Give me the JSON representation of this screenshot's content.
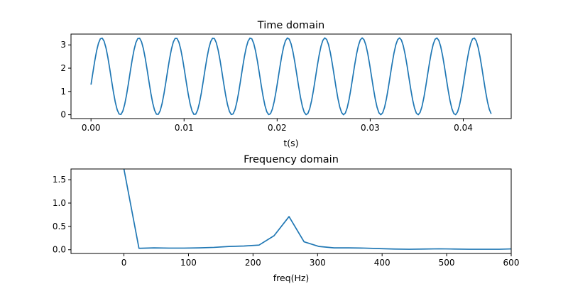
{
  "chart_data": [
    {
      "type": "line",
      "title": "Time domain",
      "xlabel": "t(s)",
      "ylabel": "",
      "xlim": [
        -0.00215,
        0.04515
      ],
      "ylim": [
        -0.165,
        3.465
      ],
      "xticks": [
        0.0,
        0.01,
        0.02,
        0.03,
        0.04
      ],
      "xtick_labels": [
        "0.00",
        "0.01",
        "0.02",
        "0.03",
        "0.04"
      ],
      "yticks": [
        0,
        1,
        2,
        3
      ],
      "ytick_labels": [
        "0",
        "1",
        "2",
        "3"
      ],
      "grid": false,
      "color": "#1f77b4",
      "signal": {
        "dc_offset": 1.65,
        "amplitude": 1.65,
        "frequency_hz": 250,
        "t_start": 0.0,
        "t_end": 0.043,
        "samples": 215
      }
    },
    {
      "type": "line",
      "title": "Frequency domain",
      "xlabel": "freq(Hz)",
      "ylabel": "",
      "xlim": [
        -82,
        600
      ],
      "ylim": [
        -0.08,
        1.73
      ],
      "xticks": [
        0,
        100,
        200,
        300,
        400,
        500,
        600
      ],
      "xtick_labels": [
        "0",
        "100",
        "200",
        "300",
        "400",
        "500",
        "600"
      ],
      "yticks": [
        0.0,
        0.5,
        1.0,
        1.5
      ],
      "ytick_labels": [
        "0.0",
        "0.5",
        "1.0",
        "1.5"
      ],
      "grid": false,
      "color": "#1f77b4",
      "x": [
        0,
        23.3,
        46.5,
        69.8,
        93,
        116.3,
        139.5,
        162.8,
        186,
        209.3,
        232.6,
        255.8,
        279.1,
        302.3,
        325.6,
        348.8,
        372.1,
        395.3,
        418.6,
        441.9,
        465.1,
        488.4,
        511.6,
        534.9,
        558.1,
        581.4,
        604.7
      ],
      "values": [
        1.73,
        0.03,
        0.04,
        0.035,
        0.035,
        0.04,
        0.05,
        0.07,
        0.08,
        0.1,
        0.3,
        0.71,
        0.17,
        0.07,
        0.04,
        0.04,
        0.035,
        0.025,
        0.015,
        0.01,
        0.015,
        0.02,
        0.015,
        0.01,
        0.01,
        0.01,
        0.02
      ]
    }
  ]
}
